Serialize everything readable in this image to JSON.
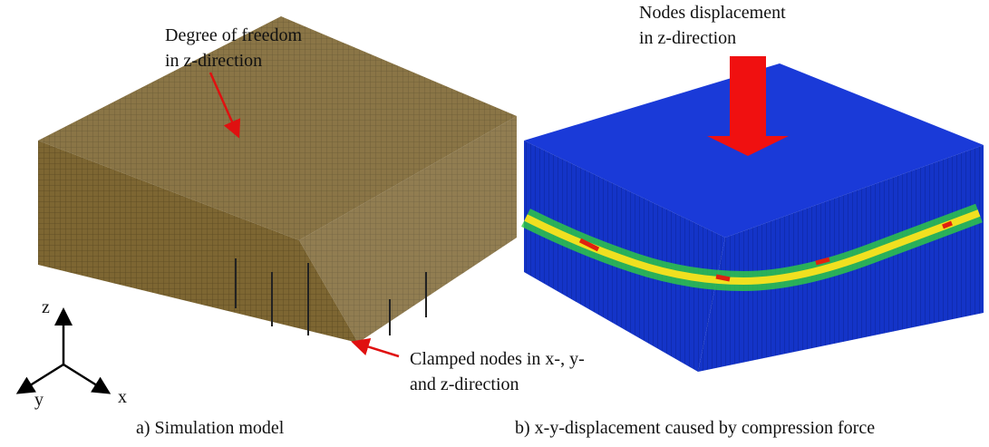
{
  "annotations": {
    "dof": {
      "lines": [
        "Degree of freedom",
        "in z-direction"
      ]
    },
    "nodes_displacement": {
      "lines": [
        "Nodes displacement",
        "in z-direction"
      ]
    },
    "clamped": {
      "lines": [
        "Clamped nodes in x-, y-",
        "and z-direction"
      ]
    }
  },
  "axes": {
    "z": "z",
    "y": "y",
    "x": "x"
  },
  "captions": {
    "a": "a) Simulation model",
    "b": "b) x-y-displacement caused by compression force"
  }
}
